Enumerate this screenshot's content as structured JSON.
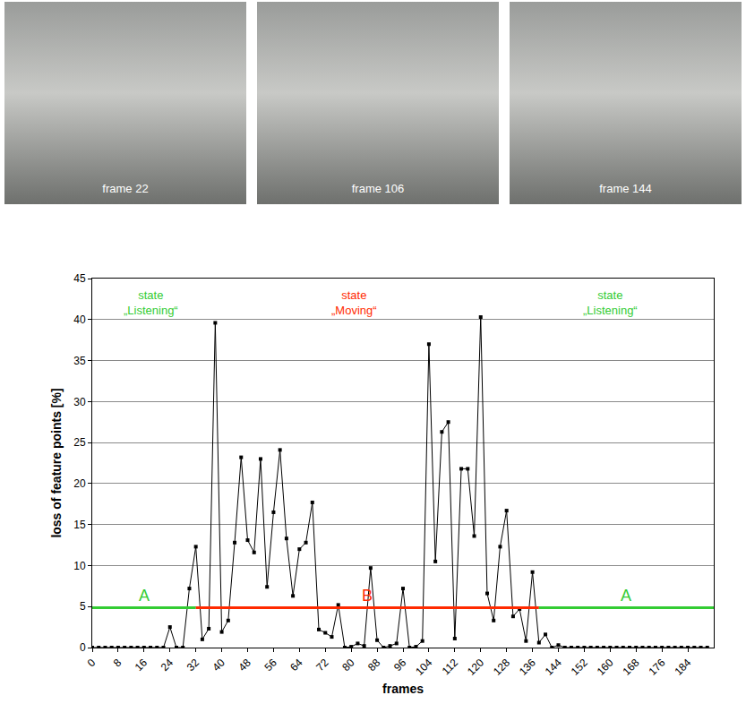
{
  "panels": [
    {
      "caption": "frame 22"
    },
    {
      "caption": "frame 106"
    },
    {
      "caption": "frame 144"
    }
  ],
  "chart_data": {
    "type": "line",
    "x_label": "frames",
    "y_label": "loss of feature points [%]",
    "x": [
      0,
      2,
      4,
      6,
      8,
      10,
      12,
      14,
      16,
      18,
      20,
      22,
      24,
      26,
      28,
      30,
      32,
      34,
      36,
      38,
      40,
      42,
      44,
      46,
      48,
      50,
      52,
      54,
      56,
      58,
      60,
      62,
      64,
      66,
      68,
      70,
      72,
      74,
      76,
      78,
      80,
      82,
      84,
      86,
      88,
      90,
      92,
      94,
      96,
      98,
      100,
      102,
      104,
      106,
      108,
      110,
      112,
      114,
      116,
      118,
      120,
      122,
      124,
      126,
      128,
      130,
      132,
      134,
      136,
      138,
      140,
      142,
      144,
      146,
      148,
      150,
      152,
      154,
      156,
      158,
      160,
      162,
      164,
      166,
      168,
      170,
      172,
      174,
      176,
      178,
      180,
      182,
      184,
      186,
      188,
      190
    ],
    "values": [
      0,
      0,
      0,
      0,
      0,
      0,
      0,
      0,
      0,
      0,
      0,
      0,
      2.5,
      0,
      0,
      7.2,
      12.3,
      1.0,
      2.3,
      39.6,
      1.9,
      3.3,
      12.8,
      23.2,
      13.1,
      11.6,
      23.0,
      7.4,
      16.5,
      24.1,
      13.3,
      6.3,
      12.0,
      12.8,
      17.7,
      2.2,
      1.8,
      1.3,
      5.2,
      0,
      0.1,
      0.5,
      0.2,
      9.7,
      0.9,
      0,
      0.2,
      0.5,
      7.2,
      0,
      0.1,
      0.8,
      37.0,
      10.5,
      26.3,
      27.5,
      1.1,
      21.8,
      21.8,
      13.6,
      40.3,
      6.6,
      3.3,
      12.3,
      16.7,
      3.8,
      4.7,
      0.8,
      9.2,
      0.6,
      1.6,
      0,
      0.3,
      0,
      0,
      0,
      0,
      0,
      0,
      0,
      0,
      0,
      0,
      0,
      0,
      0,
      0,
      0,
      0,
      0,
      0,
      0,
      0,
      0,
      0,
      0
    ],
    "color": "#000000",
    "marker": "square",
    "line_style": "solid",
    "xlim": [
      0,
      192
    ],
    "xticks": [
      0,
      8,
      16,
      24,
      32,
      40,
      48,
      56,
      64,
      72,
      80,
      88,
      96,
      104,
      112,
      120,
      128,
      136,
      144,
      152,
      160,
      168,
      176,
      184
    ],
    "ylim": [
      0,
      45
    ],
    "yticks": [
      0,
      5,
      10,
      15,
      20,
      25,
      30,
      35,
      40,
      45
    ],
    "grid": true,
    "threshold": {
      "value": 4.85,
      "segments": [
        {
          "from": 0,
          "to": 32,
          "label": "A",
          "color": "#33cc33"
        },
        {
          "from": 32,
          "to": 138,
          "label": "B",
          "color": "#ff2a00"
        },
        {
          "from": 138,
          "to": 192,
          "label": "A",
          "color": "#33cc33"
        }
      ]
    },
    "annotations": [
      {
        "text": "state „Listening“",
        "x": 18,
        "y": 42,
        "color": "#33cc33"
      },
      {
        "text": "state „Moving“",
        "x": 81,
        "y": 42,
        "color": "#ff2a00"
      },
      {
        "text": "state „Listening“",
        "x": 160,
        "y": 42,
        "color": "#33cc33"
      }
    ]
  }
}
